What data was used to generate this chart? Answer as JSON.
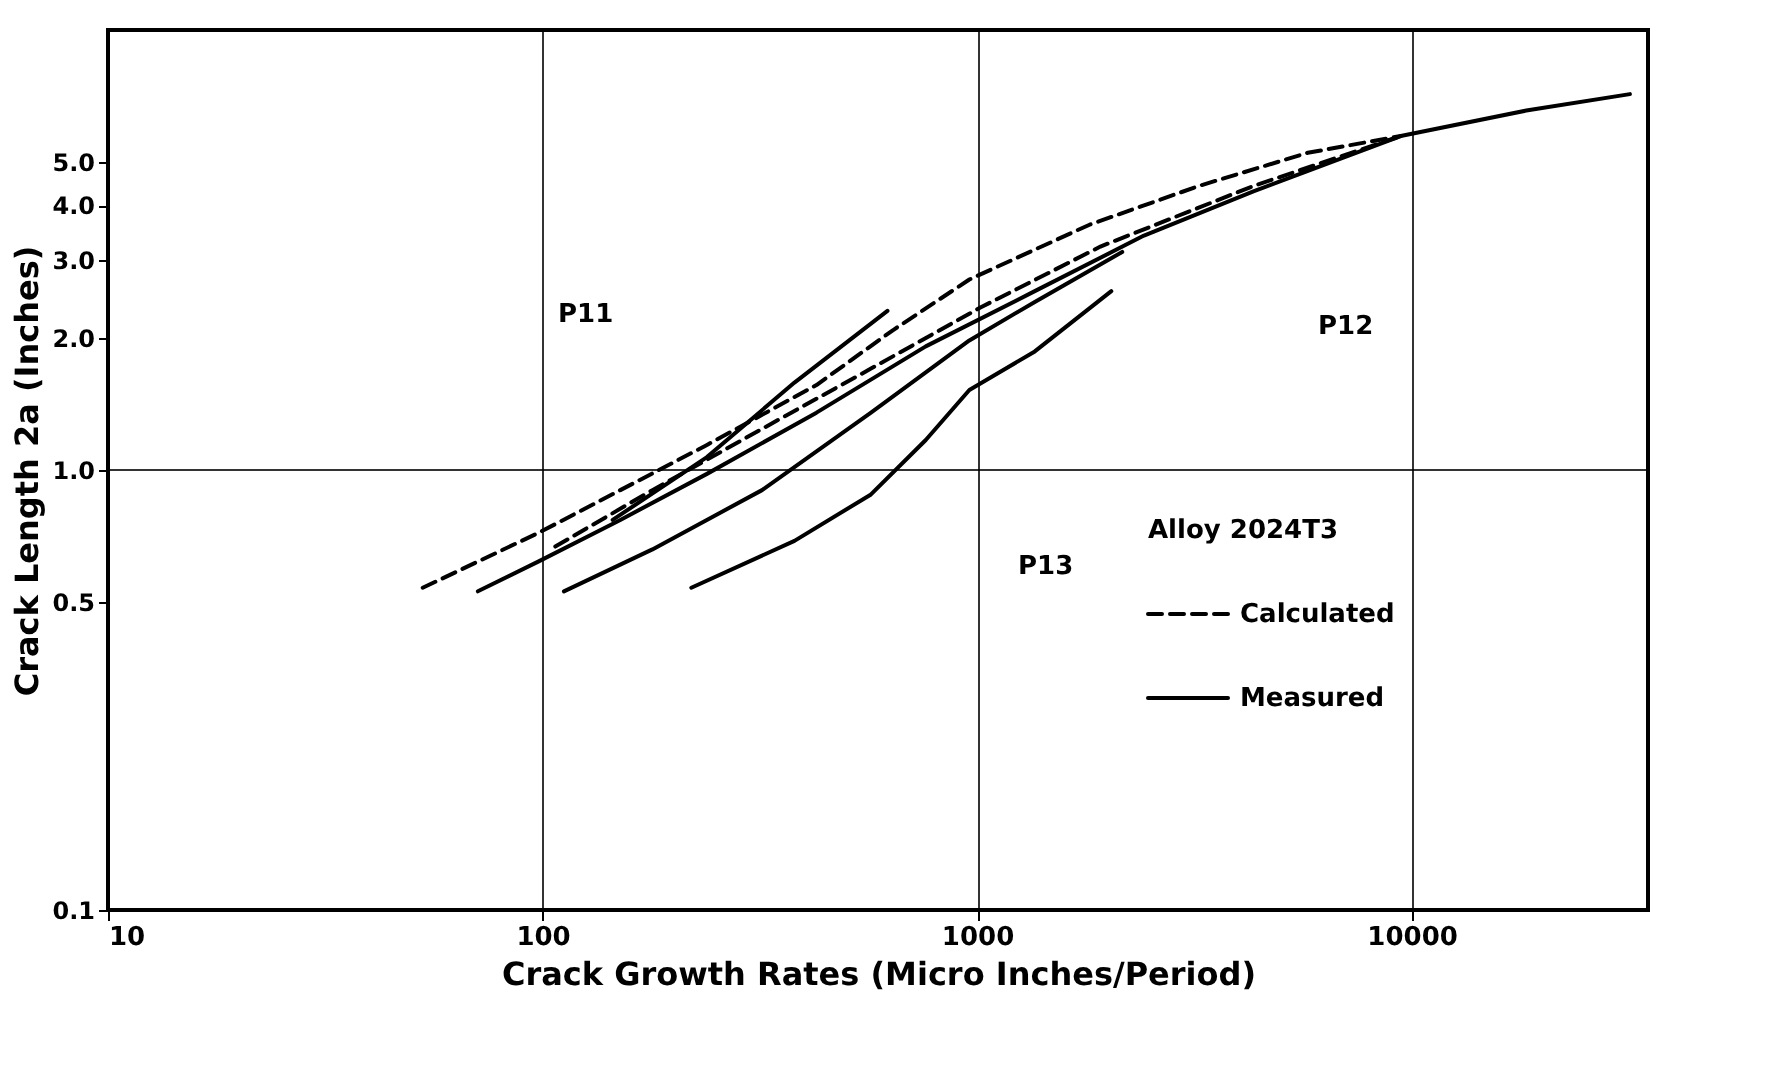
{
  "chart_data": {
    "type": "line",
    "xlabel": "Crack Growth Rates (Micro Inches/Period)",
    "ylabel": "Crack Length 2a (Inches)",
    "legend_title": "Alloy 2024T3",
    "log": "xy",
    "xlim": [
      10,
      35000
    ],
    "ylim": [
      0.1,
      10
    ],
    "xticks": [
      10,
      100,
      1000,
      10000
    ],
    "yticks": [
      0.1,
      0.5,
      {
        "value": 1,
        "label": "1.0"
      },
      {
        "value": 2,
        "label": "2.0"
      },
      {
        "value": 3,
        "label": "3.0"
      },
      {
        "value": 4,
        "label": "4.0"
      },
      {
        "value": 5,
        "label": "5.0"
      }
    ],
    "grid": "x",
    "legend": "bottom right",
    "ref_lines": [
      {
        "axis": "y",
        "value": 1,
        "label": null
      }
    ],
    "series": [
      {
        "name": "Calculated",
        "color": "#000000",
        "line_style": "dashed",
        "x": [
          53,
          98,
          151,
          239,
          427,
          641,
          960,
          1815,
          3236,
          5770,
          9440
        ],
        "values": [
          0.54,
          0.72,
          0.9,
          1.14,
          1.56,
          2.08,
          2.71,
          3.61,
          4.42,
          5.26,
          5.74
        ]
      },
      {
        "color": "#000000",
        "line_style": "dashed",
        "x": [
          107,
          179,
          320,
          570,
          1018,
          1923,
          4325,
          9440
        ],
        "values": [
          0.67,
          0.9,
          1.24,
          1.7,
          2.34,
          3.22,
          4.42,
          5.74
        ]
      },
      {
        "name": "Measured",
        "color": "#000000",
        "line_style": "solid",
        "x": [
          145,
          239,
          380,
          622
        ],
        "values": [
          0.77,
          1.07,
          1.58,
          2.3
        ]
      },
      {
        "color": "#000000",
        "line_style": "solid",
        "x": [
          71,
          98,
          151,
          239,
          427,
          762,
          1358,
          2422,
          4325,
          9440,
          18370,
          31800
        ],
        "values": [
          0.53,
          0.62,
          0.77,
          0.98,
          1.35,
          1.91,
          2.55,
          3.41,
          4.3,
          5.74,
          6.56,
          7.15
        ]
      },
      {
        "color": "#000000",
        "line_style": "solid",
        "x": [
          112,
          179,
          320,
          570,
          960,
          1358,
          2158
        ],
        "values": [
          0.53,
          0.66,
          0.9,
          1.35,
          1.97,
          2.41,
          3.13
        ]
      },
      {
        "color": "#000000",
        "line_style": "solid",
        "x": [
          220,
          380,
          570,
          762,
          960,
          1358,
          2037
        ],
        "values": [
          0.54,
          0.69,
          0.88,
          1.17,
          1.52,
          1.86,
          2.55
        ]
      }
    ],
    "annotations": [
      "P11",
      "P12",
      "P13"
    ]
  }
}
